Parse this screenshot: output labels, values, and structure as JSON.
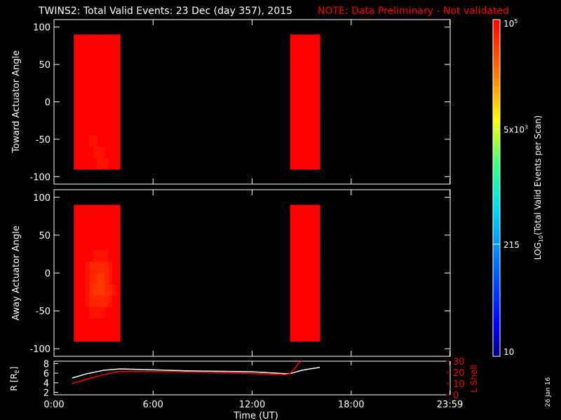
{
  "header": {
    "title": "TWINS2: Total Valid Events: 23 Dec (day 357), 2015",
    "note": "NOTE: Data Preliminary - Not validated",
    "note_color": "#ff0000"
  },
  "side_date": "26 Jan 16",
  "colors": {
    "background": "#000000",
    "text": "#ffffff",
    "accent": "#ff0000"
  },
  "chart_data": [
    {
      "type": "heatmap",
      "id": "toward",
      "ylabel": "Toward Actuator Angle",
      "ylim": [
        -110,
        110
      ],
      "yticks": [
        "100",
        "50",
        "0",
        "-50",
        "-100"
      ],
      "ytick_values": [
        100,
        50,
        0,
        -50,
        -100
      ],
      "data_y_range": [
        -90,
        90
      ],
      "blocks": [
        {
          "t_start": 1.2,
          "t_end": 4.0,
          "scale": "log",
          "rows": [
            [
              6.5,
              6.6,
              6.9,
              7.2,
              7.5,
              7.7,
              7.8,
              7.8,
              7.8,
              7.7,
              7.6,
              7.7
            ],
            [
              6.2,
              6.3,
              6.6,
              6.9,
              7.3,
              7.6,
              7.8,
              7.9,
              7.9,
              7.8,
              7.7,
              7.8
            ],
            [
              6.0,
              6.1,
              6.3,
              6.6,
              7.0,
              7.3,
              7.5,
              7.6,
              7.6,
              7.5,
              7.4,
              7.5
            ],
            [
              5.7,
              5.8,
              6.0,
              6.2,
              6.5,
              6.8,
              7.0,
              7.1,
              7.1,
              7.0,
              6.9,
              7.0
            ],
            [
              5.5,
              5.5,
              5.7,
              5.9,
              6.1,
              6.3,
              6.5,
              6.6,
              6.6,
              6.5,
              6.5,
              6.6
            ],
            [
              5.3,
              5.3,
              5.4,
              5.6,
              5.7,
              5.9,
              6.0,
              6.1,
              6.2,
              6.2,
              6.2,
              6.3
            ],
            [
              5.2,
              5.2,
              5.2,
              5.3,
              5.4,
              5.5,
              5.6,
              5.7,
              5.8,
              5.9,
              5.9,
              6.0
            ],
            [
              5.2,
              5.1,
              5.1,
              5.1,
              5.1,
              5.2,
              5.3,
              5.4,
              5.5,
              5.6,
              5.7,
              5.8
            ],
            [
              5.3,
              5.2,
              5.1,
              5.0,
              5.0,
              5.0,
              5.1,
              5.2,
              5.3,
              5.4,
              5.5,
              5.6
            ],
            [
              5.6,
              5.4,
              5.2,
              5.0,
              4.9,
              4.9,
              5.0,
              5.0,
              5.1,
              5.2,
              5.3,
              5.4
            ],
            [
              6.0,
              5.7,
              5.4,
              5.2,
              5.0,
              4.9,
              4.9,
              4.9,
              5.0,
              5.1,
              5.2,
              5.3
            ],
            [
              6.3,
              6.0,
              5.7,
              5.4,
              5.1,
              5.0,
              4.9,
              4.9,
              4.9,
              5.0,
              5.1,
              5.2
            ]
          ]
        },
        {
          "t_start": 14.3,
          "t_end": 16.1,
          "scale": "log",
          "rows": [
            [
              7.6,
              7.4,
              6.6,
              6.8,
              7.0,
              6.9,
              7.1,
              6.5,
              6.7,
              6.3,
              5.7,
              6.0
            ],
            [
              7.7,
              7.5,
              6.6,
              6.8,
              7.1,
              6.9,
              7.1,
              6.5,
              6.8,
              6.3,
              5.8,
              6.1
            ],
            [
              7.7,
              7.6,
              6.7,
              6.9,
              7.1,
              7.0,
              7.2,
              6.6,
              6.8,
              6.4,
              5.9,
              6.1
            ],
            [
              7.7,
              7.6,
              6.8,
              7.0,
              7.2,
              7.0,
              7.2,
              6.6,
              6.8,
              6.4,
              5.8,
              6.1
            ],
            [
              7.8,
              7.6,
              6.8,
              7.1,
              7.2,
              7.0,
              7.3,
              6.7,
              6.9,
              6.5,
              5.9,
              6.2
            ],
            [
              7.8,
              7.7,
              6.9,
              7.1,
              7.3,
              7.1,
              7.3,
              6.7,
              6.9,
              6.5,
              6.0,
              6.2
            ],
            [
              7.8,
              7.7,
              7.0,
              7.2,
              7.4,
              7.2,
              7.4,
              6.8,
              7.0,
              6.6,
              6.0,
              6.3
            ],
            [
              7.8,
              7.7,
              7.1,
              7.3,
              7.4,
              7.2,
              7.4,
              6.9,
              7.1,
              6.7,
              6.1,
              6.4
            ],
            [
              7.9,
              7.8,
              7.2,
              7.4,
              7.5,
              7.3,
              7.5,
              7.0,
              7.2,
              6.8,
              6.2,
              6.5
            ],
            [
              7.9,
              7.8,
              7.3,
              7.5,
              7.6,
              7.4,
              7.6,
              7.1,
              7.3,
              7.0,
              6.4,
              6.7
            ],
            [
              7.9,
              7.9,
              7.5,
              7.6,
              7.7,
              7.5,
              7.6,
              7.3,
              7.4,
              7.2,
              6.7,
              6.9
            ],
            [
              8.0,
              7.9,
              7.6,
              7.7,
              7.8,
              7.7,
              7.8,
              7.5,
              7.6,
              7.4,
              7.0,
              7.2
            ]
          ]
        }
      ]
    },
    {
      "type": "heatmap",
      "id": "away",
      "ylabel": "Away Actuator Angle",
      "ylim": [
        -110,
        110
      ],
      "yticks": [
        "100",
        "50",
        "0",
        "-50",
        "-100"
      ],
      "ytick_values": [
        100,
        50,
        0,
        -50,
        -100
      ],
      "data_y_range": [
        -90,
        90
      ],
      "blocks": [
        {
          "t_start": 1.2,
          "t_end": 4.0,
          "scale": "log",
          "rows": [
            [
              7.3,
              7.4,
              7.5,
              7.5,
              7.6,
              7.6,
              7.6,
              7.6,
              7.5,
              7.5,
              7.4,
              7.4
            ],
            [
              7.0,
              7.1,
              7.2,
              7.2,
              7.3,
              7.3,
              7.3,
              7.3,
              7.2,
              7.2,
              7.1,
              7.1
            ],
            [
              6.3,
              6.4,
              6.5,
              6.5,
              6.6,
              6.6,
              6.6,
              6.6,
              6.5,
              6.4,
              6.4,
              6.4
            ],
            [
              5.6,
              5.5,
              5.5,
              5.5,
              5.4,
              5.4,
              5.4,
              5.4,
              5.4,
              5.4,
              5.5,
              5.5
            ],
            [
              5.4,
              5.2,
              5.1,
              5.0,
              5.0,
              4.9,
              4.9,
              4.9,
              4.9,
              5.0,
              5.1,
              5.2
            ],
            [
              5.4,
              5.2,
              5.0,
              4.9,
              4.8,
              4.8,
              4.8,
              4.8,
              4.8,
              4.9,
              5.0,
              5.1
            ],
            [
              5.4,
              5.2,
              5.0,
              4.9,
              4.8,
              4.8,
              4.7,
              4.7,
              4.8,
              4.9,
              5.0,
              5.1
            ],
            [
              5.5,
              5.2,
              5.0,
              4.9,
              4.8,
              4.7,
              4.7,
              4.7,
              4.8,
              4.8,
              4.9,
              5.0
            ],
            [
              5.6,
              5.3,
              5.1,
              4.9,
              4.8,
              4.8,
              4.8,
              4.8,
              4.8,
              4.9,
              5.0,
              5.1
            ],
            [
              5.9,
              5.5,
              5.2,
              5.0,
              4.9,
              4.9,
              4.9,
              4.9,
              5.0,
              5.0,
              5.1,
              5.2
            ],
            [
              6.8,
              6.0,
              5.4,
              5.1,
              5.0,
              5.0,
              5.0,
              5.0,
              5.1,
              5.1,
              5.2,
              5.3
            ],
            [
              7.4,
              6.3,
              5.5,
              5.2,
              5.1,
              5.1,
              5.1,
              5.1,
              5.2,
              5.2,
              5.3,
              5.4
            ]
          ]
        },
        {
          "t_start": 14.3,
          "t_end": 16.1,
          "scale": "log",
          "rows": [
            [
              7.8,
              7.7,
              7.5,
              7.6,
              7.7,
              7.6,
              7.7,
              7.6,
              7.6,
              7.6,
              7.2,
              7.3
            ],
            [
              7.6,
              7.5,
              7.0,
              7.2,
              7.4,
              7.2,
              7.4,
              7.0,
              7.1,
              7.0,
              6.4,
              6.6
            ],
            [
              7.4,
              7.3,
              6.6,
              6.8,
              7.0,
              6.9,
              7.1,
              6.5,
              6.7,
              6.4,
              5.7,
              6.0
            ],
            [
              7.3,
              7.2,
              6.5,
              6.7,
              6.9,
              6.8,
              7.0,
              6.4,
              6.6,
              6.3,
              5.6,
              5.9
            ],
            [
              7.2,
              7.1,
              6.4,
              6.6,
              6.8,
              6.7,
              6.9,
              6.3,
              6.5,
              6.2,
              5.6,
              5.8
            ],
            [
              7.1,
              7.0,
              6.3,
              6.5,
              6.8,
              6.6,
              6.8,
              6.3,
              6.5,
              6.1,
              5.5,
              5.8
            ],
            [
              7.0,
              6.9,
              6.3,
              6.5,
              6.7,
              6.6,
              6.8,
              6.2,
              6.4,
              6.1,
              5.5,
              5.7
            ],
            [
              6.9,
              6.9,
              6.2,
              6.4,
              6.7,
              6.5,
              6.7,
              6.2,
              6.4,
              6.0,
              5.5,
              5.7
            ],
            [
              6.9,
              6.8,
              6.2,
              6.4,
              6.6,
              6.5,
              6.7,
              6.1,
              6.3,
              6.0,
              5.4,
              5.7
            ],
            [
              6.8,
              6.8,
              6.1,
              6.3,
              6.6,
              6.4,
              6.6,
              6.1,
              6.3,
              6.0,
              5.4,
              5.6
            ],
            [
              6.8,
              6.7,
              6.1,
              6.3,
              6.5,
              6.4,
              6.6,
              6.0,
              6.2,
              5.9,
              5.4,
              5.6
            ],
            [
              6.8,
              6.7,
              6.1,
              6.3,
              6.5,
              6.4,
              6.6,
              6.0,
              6.2,
              5.9,
              5.4,
              5.6
            ]
          ]
        }
      ]
    },
    {
      "type": "line",
      "id": "orbit",
      "ylabel_left_parts": [
        "R [R",
        "E",
        "]"
      ],
      "ylabel_right": "L Shell",
      "ylim_left": [
        1.5,
        8.5
      ],
      "ylim_right": [
        0,
        30
      ],
      "yticks_left": [
        "8",
        "6",
        "4",
        "2"
      ],
      "ytick_values_left": [
        8,
        6,
        4,
        2
      ],
      "yticks_right": [
        "30",
        "20",
        "10",
        "0"
      ],
      "ytick_values_right": [
        30,
        20,
        10,
        0
      ],
      "series": [
        {
          "color": "#ffffff",
          "axis": "left",
          "x": [
            1.1,
            2.0,
            3.0,
            4.0,
            8.0,
            12.0,
            14.0,
            14.3,
            14.6,
            15.0,
            15.5,
            16.1
          ],
          "y": [
            5.0,
            5.9,
            6.6,
            6.9,
            6.5,
            6.3,
            5.9,
            5.9,
            6.2,
            6.6,
            6.9,
            7.2
          ]
        },
        {
          "color": "#ff0000",
          "axis": "right",
          "x": [
            1.1,
            2.0,
            3.0,
            4.0,
            8.0,
            12.0,
            14.0,
            14.3,
            14.6,
            14.8,
            15.0
          ],
          "y": [
            10.0,
            14.0,
            18.0,
            21.0,
            20.5,
            19.0,
            18.0,
            19.0,
            24.0,
            28.0,
            30.0
          ]
        }
      ]
    }
  ],
  "xaxis": {
    "label": "Time (UT)",
    "xlim": [
      0,
      24
    ],
    "ticks": [
      "0:00",
      "6:00",
      "12:00",
      "18:00",
      "23:59"
    ],
    "tick_values": [
      0,
      6,
      12,
      18,
      23.98
    ]
  },
  "colorbar": {
    "label_prefix": "LOG",
    "label_sub": "10",
    "label_rest": "(Total Valid Events per Scan)",
    "scale": "log",
    "range": [
      1,
      5
    ],
    "ticks": [
      {
        "value": 5,
        "base": "10",
        "exp": "5"
      },
      {
        "value": 3.699,
        "base": "5x10",
        "exp": "3"
      },
      {
        "value": 2.332,
        "base": "215",
        "exp": ""
      },
      {
        "value": 1,
        "base": "10",
        "exp": ""
      }
    ]
  }
}
